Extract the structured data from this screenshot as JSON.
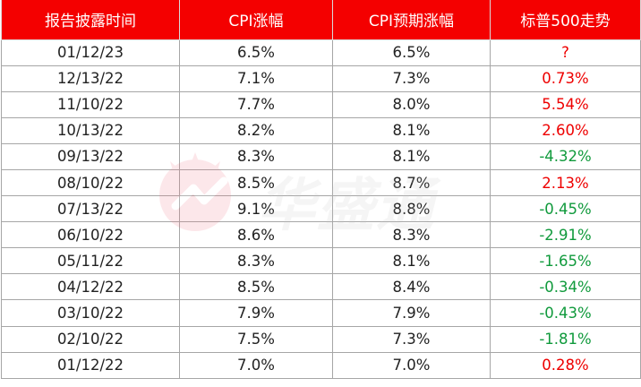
{
  "table": {
    "headers": [
      "报告披露时间",
      "CPI涨幅",
      "CPI预期涨幅",
      "标普500走势"
    ],
    "rows": [
      {
        "date": "01/12/23",
        "cpi": "6.5%",
        "expected": "6.5%",
        "sp500": "?",
        "trend": "pending"
      },
      {
        "date": "12/13/22",
        "cpi": "7.1%",
        "expected": "7.3%",
        "sp500": "0.73%",
        "trend": "up"
      },
      {
        "date": "11/10/22",
        "cpi": "7.7%",
        "expected": "8.0%",
        "sp500": "5.54%",
        "trend": "up"
      },
      {
        "date": "10/13/22",
        "cpi": "8.2%",
        "expected": "8.1%",
        "sp500": "2.60%",
        "trend": "up"
      },
      {
        "date": "09/13/22",
        "cpi": "8.3%",
        "expected": "8.1%",
        "sp500": "-4.32%",
        "trend": "down"
      },
      {
        "date": "08/10/22",
        "cpi": "8.5%",
        "expected": "8.7%",
        "sp500": "2.13%",
        "trend": "up"
      },
      {
        "date": "07/13/22",
        "cpi": "9.1%",
        "expected": "8.8%",
        "sp500": "-0.45%",
        "trend": "down"
      },
      {
        "date": "06/10/22",
        "cpi": "8.6%",
        "expected": "8.3%",
        "sp500": "-2.91%",
        "trend": "down"
      },
      {
        "date": "05/11/22",
        "cpi": "8.3%",
        "expected": "8.1%",
        "sp500": "-1.65%",
        "trend": "down"
      },
      {
        "date": "04/12/22",
        "cpi": "8.5%",
        "expected": "8.4%",
        "sp500": "-0.34%",
        "trend": "down"
      },
      {
        "date": "03/10/22",
        "cpi": "7.9%",
        "expected": "7.9%",
        "sp500": "-0.43%",
        "trend": "down"
      },
      {
        "date": "02/10/22",
        "cpi": "7.5%",
        "expected": "7.3%",
        "sp500": "-1.81%",
        "trend": "down"
      },
      {
        "date": "01/12/22",
        "cpi": "7.0%",
        "expected": "7.0%",
        "sp500": "0.28%",
        "trend": "up"
      }
    ]
  },
  "watermark": {
    "text": "华盛通",
    "icon": "huasheng-logo-icon"
  },
  "colors": {
    "header_bg": "#f40000",
    "header_text": "#ffffff",
    "up": "#ee0000",
    "down": "#109a3c",
    "watermark": "#f07080"
  }
}
